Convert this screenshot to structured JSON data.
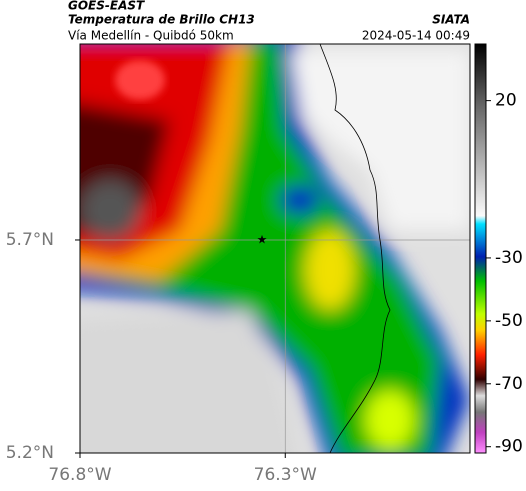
{
  "header": {
    "satellite": "GOES-EAST",
    "product": "Temperatura de Brillo CH13",
    "location": "Vía Medellín - Quibdó 50km",
    "source": "SIATA",
    "datetime": "2024-05-14 00:49"
  },
  "map": {
    "xlim": [
      -76.8,
      -75.85
    ],
    "ylim": [
      5.2,
      6.16
    ],
    "xticks": [
      {
        "value": -76.8,
        "label": "76.8°W"
      },
      {
        "value": -76.3,
        "label": "76.3°W"
      }
    ],
    "yticks": [
      {
        "value": 5.7,
        "label": "5.7°N"
      },
      {
        "value": 5.2,
        "label": "5.2°N"
      }
    ]
  },
  "colorbar": {
    "clim": [
      -92,
      38
    ],
    "ticks": [
      20,
      -30,
      -50,
      -70,
      -90
    ]
  }
}
